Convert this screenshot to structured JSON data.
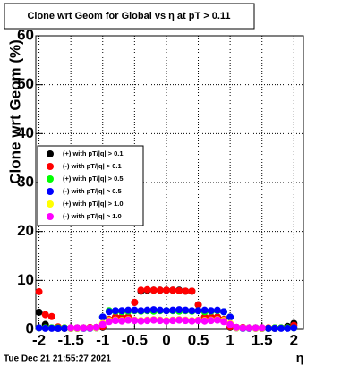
{
  "chart_data": {
    "type": "scatter",
    "title": "Clone wrt Geom for Global vs  η at pT > 0.11",
    "y_label": "Clone wrt Geom (%)",
    "x_label": "η",
    "footer": "Tue Dec 21 21:55:27 2021",
    "xlim": [
      -2.05,
      2.15
    ],
    "ylim": [
      0,
      60
    ],
    "xticks": [
      -2,
      -1.5,
      -1,
      -0.5,
      0,
      0.5,
      1,
      1.5,
      2
    ],
    "yticks": [
      0,
      10,
      20,
      30,
      40,
      50,
      60
    ],
    "grid": true,
    "legend": "center left",
    "x": [
      -2.0,
      -1.9,
      -1.8,
      -1.7,
      -1.6,
      -1.5,
      -1.4,
      -1.3,
      -1.2,
      -1.1,
      -1.0,
      -0.9,
      -0.8,
      -0.7,
      -0.6,
      -0.5,
      -0.4,
      -0.3,
      -0.2,
      -0.1,
      0.0,
      0.1,
      0.2,
      0.3,
      0.4,
      0.5,
      0.6,
      0.7,
      0.8,
      0.9,
      1.0,
      1.1,
      1.2,
      1.3,
      1.4,
      1.5,
      1.6,
      1.7,
      1.8,
      1.9,
      2.0
    ],
    "series": [
      {
        "name": "(+) with pT/|q| > 0.1",
        "color": "#000000",
        "values": [
          3.5,
          1.0,
          0.3,
          0.2,
          0.2,
          0.2,
          0.3,
          0.3,
          0.3,
          0.4,
          0.4,
          2.0,
          2.5,
          2.5,
          2.5,
          5.5,
          7.8,
          8.0,
          8.0,
          8.0,
          8.0,
          8.0,
          8.0,
          7.8,
          7.8,
          5.0,
          2.5,
          2.5,
          2.5,
          2.0,
          0.4,
          0.4,
          0.3,
          0.3,
          0.3,
          0.2,
          0.2,
          0.2,
          0.3,
          0.6,
          1.2
        ]
      },
      {
        "name": "(-) with pT/|q| > 0.1",
        "color": "#ff0000",
        "values": [
          7.7,
          3.0,
          2.6,
          0.5,
          0.3,
          0.3,
          0.3,
          0.3,
          0.4,
          0.4,
          0.5,
          2.0,
          2.5,
          2.5,
          2.5,
          5.5,
          8.0,
          8.1,
          8.0,
          8.0,
          8.0,
          8.0,
          7.9,
          7.8,
          7.8,
          5.0,
          2.5,
          2.5,
          2.5,
          2.0,
          0.5,
          0.4,
          0.4,
          0.3,
          0.3,
          0.3,
          0.3,
          0.3,
          0.3,
          0.3,
          0.8
        ]
      },
      {
        "name": "(+) with pT/|q| > 0.5",
        "color": "#00ff00",
        "values": [
          0.3,
          0.3,
          0.3,
          0.3,
          0.3,
          0.2,
          0.2,
          0.3,
          0.3,
          0.3,
          2.5,
          3.8,
          3.7,
          3.6,
          3.7,
          3.8,
          3.7,
          3.8,
          3.7,
          3.8,
          3.8,
          3.8,
          3.7,
          3.8,
          3.7,
          3.8,
          3.6,
          3.7,
          3.8,
          3.6,
          2.5,
          0.3,
          0.3,
          0.3,
          0.3,
          0.2,
          0.2,
          0.3,
          0.3,
          0.3,
          0.3
        ]
      },
      {
        "name": "(-) with pT/|q| > 0.5",
        "color": "#0000ff",
        "values": [
          0.3,
          0.2,
          0.2,
          0.2,
          0.2,
          0.2,
          0.2,
          0.2,
          0.2,
          0.3,
          2.5,
          3.6,
          3.8,
          3.8,
          3.9,
          3.9,
          3.8,
          3.9,
          4.0,
          3.9,
          3.8,
          3.9,
          4.0,
          3.9,
          3.8,
          3.8,
          3.9,
          3.8,
          3.9,
          3.6,
          2.5,
          0.3,
          0.2,
          0.2,
          0.2,
          0.2,
          0.2,
          0.2,
          0.2,
          0.2,
          0.3
        ]
      },
      {
        "name": "(+) with pT/|q| > 1.0",
        "color": "#ffff00",
        "values": [
          null,
          null,
          null,
          null,
          null,
          0.2,
          0.2,
          0.3,
          0.3,
          0.3,
          1.2,
          1.8,
          1.9,
          1.8,
          2.0,
          1.9,
          1.8,
          1.9,
          2.0,
          1.9,
          1.8,
          1.9,
          2.0,
          1.9,
          1.8,
          1.9,
          1.8,
          1.9,
          2.0,
          1.8,
          1.2,
          0.3,
          0.3,
          0.3,
          0.2,
          0.2,
          null,
          null,
          null,
          null,
          null
        ]
      },
      {
        "name": "(-) with pT/|q| > 1.0",
        "color": "#ff00ff",
        "values": [
          null,
          null,
          null,
          null,
          null,
          0.3,
          0.3,
          0.3,
          0.3,
          0.4,
          1.0,
          1.6,
          1.8,
          1.7,
          1.9,
          1.8,
          1.7,
          1.8,
          1.9,
          1.8,
          1.7,
          1.8,
          1.9,
          1.8,
          1.7,
          1.8,
          1.7,
          1.8,
          1.9,
          1.6,
          1.0,
          0.4,
          0.3,
          0.3,
          0.3,
          0.3,
          null,
          null,
          null,
          null,
          null
        ]
      }
    ]
  }
}
